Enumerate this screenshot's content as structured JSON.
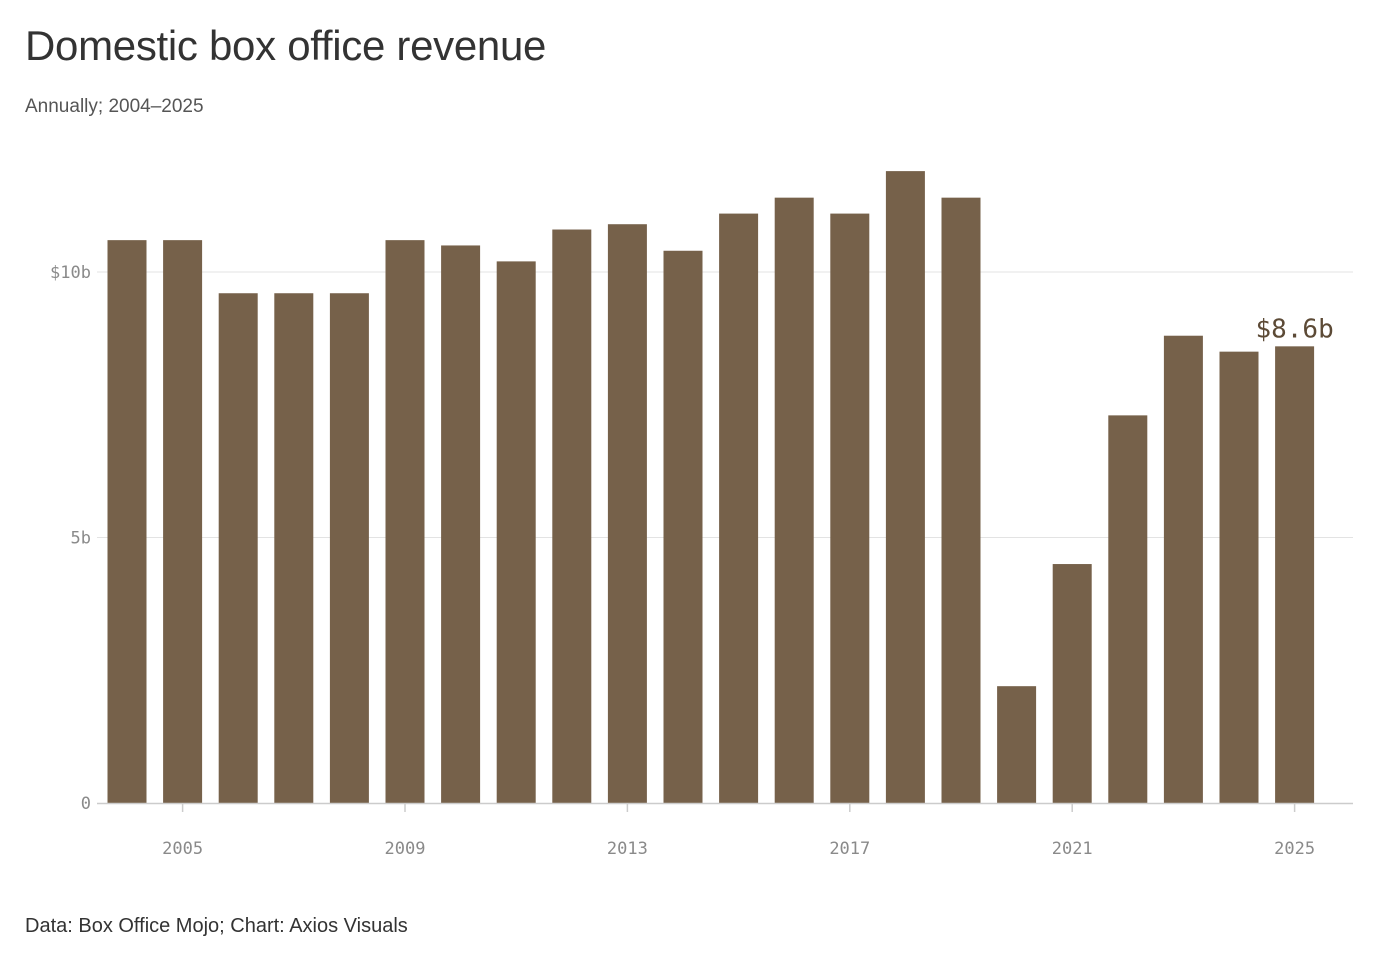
{
  "header": {
    "title": "Domestic box office revenue",
    "subtitle": "Annually; 2004–2025"
  },
  "footer": {
    "source": "Data: Box Office Mojo; Chart: Axios Visuals"
  },
  "colors": {
    "bar": "#76614a",
    "grid": "#e3e3e3",
    "axis": "#cccccc",
    "tick_text": "#8a8a8a",
    "callout": "#5c4a36"
  },
  "chart_data": {
    "type": "bar",
    "title": "Domestic box office revenue",
    "subtitle": "Annually; 2004–2025",
    "xlabel": "",
    "ylabel": "",
    "unit": "billions of US dollars",
    "categories": [
      2004,
      2005,
      2006,
      2007,
      2008,
      2009,
      2010,
      2011,
      2012,
      2013,
      2014,
      2015,
      2016,
      2017,
      2018,
      2019,
      2020,
      2021,
      2022,
      2023,
      2024,
      2025
    ],
    "values": [
      10.6,
      10.6,
      9.6,
      9.6,
      9.6,
      10.6,
      10.5,
      10.2,
      10.8,
      10.9,
      10.4,
      11.1,
      11.4,
      11.1,
      11.9,
      11.4,
      2.2,
      4.5,
      7.3,
      8.8,
      8.5,
      8.6
    ],
    "ylim": [
      0,
      12.5
    ],
    "y_ticks": [
      {
        "value": 0,
        "label": "0"
      },
      {
        "value": 5,
        "label": "5b"
      },
      {
        "value": 10,
        "label": "$10b"
      }
    ],
    "x_ticks": [
      {
        "value": 2005,
        "label": "2005"
      },
      {
        "value": 2009,
        "label": "2009"
      },
      {
        "value": 2013,
        "label": "2013"
      },
      {
        "value": 2017,
        "label": "2017"
      },
      {
        "value": 2021,
        "label": "2021"
      },
      {
        "value": 2025,
        "label": "2025"
      }
    ],
    "annotation": {
      "category": 2025,
      "label": "$8.6b"
    },
    "grid": true
  }
}
